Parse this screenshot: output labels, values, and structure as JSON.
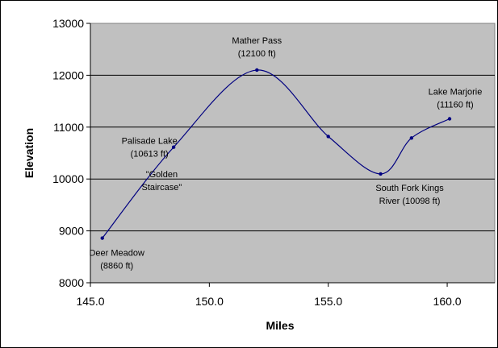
{
  "chart_data": {
    "type": "line",
    "title": "",
    "xlabel": "Miles",
    "ylabel": "Elevation",
    "xlim": [
      145.0,
      162.0
    ],
    "ylim": [
      8000,
      13000
    ],
    "x_ticks": [
      "145.0",
      "150.0",
      "155.0",
      "160.0"
    ],
    "y_ticks": [
      "8000",
      "9000",
      "10000",
      "11000",
      "12000",
      "13000"
    ],
    "grid": "horizontal",
    "smooth": true,
    "series": [
      {
        "points": [
          {
            "x": 145.5,
            "y": 8860
          },
          {
            "x": 148.5,
            "y": 10613
          },
          {
            "x": 152.0,
            "y": 12100
          },
          {
            "x": 155.0,
            "y": 10820
          },
          {
            "x": 157.2,
            "y": 10098
          },
          {
            "x": 158.5,
            "y": 10790
          },
          {
            "x": 160.1,
            "y": 11160
          }
        ]
      }
    ],
    "annotations": [
      {
        "lines": [
          "Deer Meadow",
          "(8860 ft)"
        ],
        "x": 145.5,
        "y": 8860
      },
      {
        "lines": [
          "Palisade Lake",
          "(10613 ft)"
        ],
        "x": 148.5,
        "y": 10613
      },
      {
        "lines": [
          "\"Golden",
          "Staircase\""
        ],
        "x": 148.0,
        "y": 9550
      },
      {
        "lines": [
          "Mather Pass",
          "(12100 ft)"
        ],
        "x": 152.0,
        "y": 12100
      },
      {
        "lines": [
          "South Fork Kings",
          "River (10098 ft)"
        ],
        "x": 157.2,
        "y": 10098
      },
      {
        "lines": [
          "Lake Marjorie",
          "(11160 ft)"
        ],
        "x": 160.1,
        "y": 11160
      }
    ],
    "colors": {
      "plot_background": "#c0c0c0",
      "line": "#000080",
      "grid": "#000000"
    }
  }
}
